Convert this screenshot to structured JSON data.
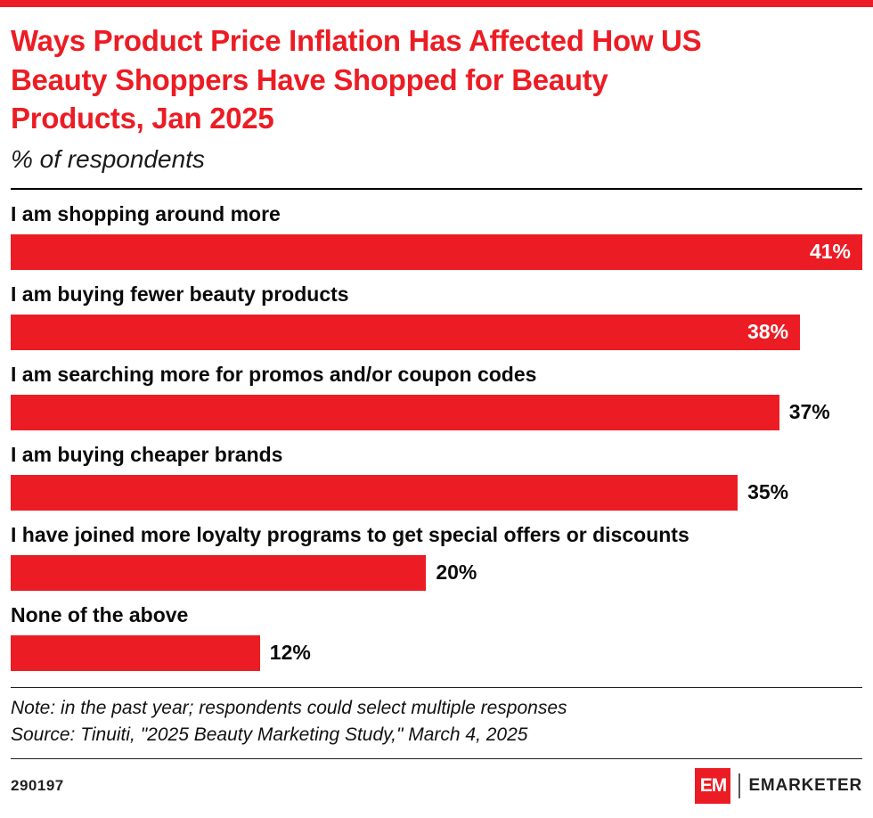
{
  "accent_color": "#ec1c24",
  "header": {
    "title": "Ways Product Price Inflation Has Affected How US Beauty Shoppers Have Shopped for Beauty Products, Jan 2025",
    "title_lines": [
      "Ways Product Price Inflation Has Affected How US",
      "Beauty Shoppers Have Shopped for Beauty",
      "Products, Jan 2025"
    ],
    "subtitle": "% of respondents"
  },
  "chart_data": {
    "type": "bar",
    "orientation": "horizontal",
    "title": "Ways Product Price Inflation Has Affected How US Beauty Shoppers Have Shopped for Beauty Products, Jan 2025",
    "ylabel": "",
    "xlabel": "% of respondents",
    "xlim": [
      0,
      41
    ],
    "grid": false,
    "legend": "none",
    "bar_color": "#ec1c24",
    "categories": [
      "I am shopping around more",
      "I am buying fewer beauty products",
      "I am searching more for promos and/or coupon codes",
      "I am buying cheaper brands",
      "I have joined more loyalty programs to get special offers or discounts",
      "None of the above"
    ],
    "values": [
      41,
      38,
      37,
      35,
      20,
      12
    ],
    "value_labels": [
      "41%",
      "38%",
      "37%",
      "35%",
      "20%",
      "12%"
    ],
    "label_inside": [
      true,
      true,
      false,
      false,
      false,
      false
    ]
  },
  "notes": {
    "note": "Note: in the past year; respondents could select multiple responses",
    "source": "Source: Tinuiti, \"2025 Beauty Marketing Study,\" March 4, 2025"
  },
  "footer": {
    "chart_id": "290197",
    "logo_text": "EM",
    "brand": "EMARKETER"
  }
}
